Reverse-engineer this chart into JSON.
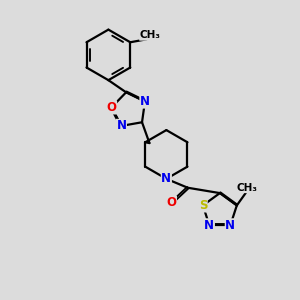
{
  "bg_color": "#dcdcdc",
  "bond_color": "#000000",
  "bond_width": 1.6,
  "atom_colors": {
    "N": "#0000ee",
    "O": "#ee0000",
    "S": "#bbbb00",
    "C": "#000000"
  },
  "font_size_atom": 8.5
}
